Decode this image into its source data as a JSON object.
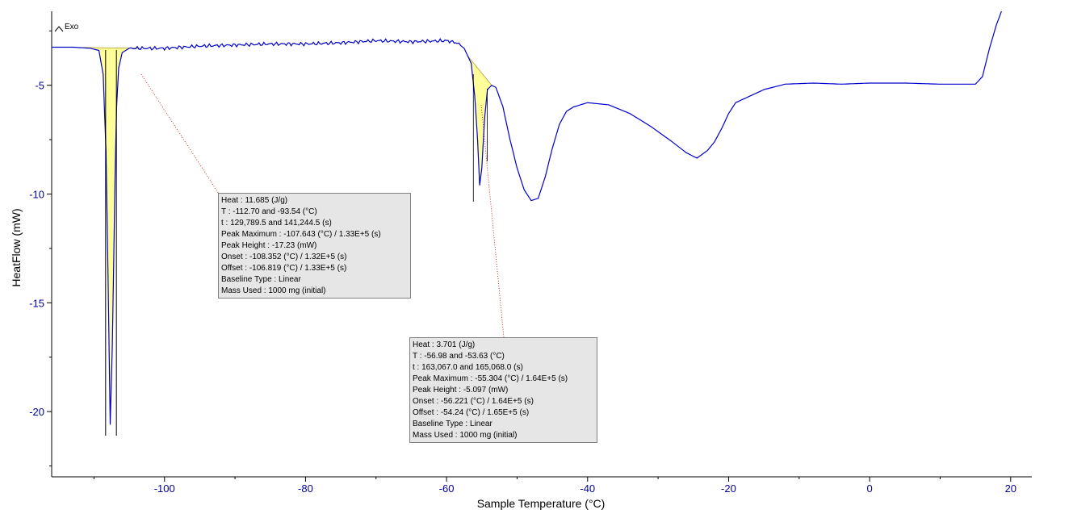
{
  "chart_data": {
    "type": "line",
    "title": "",
    "xlabel": "Sample Temperature (°C)",
    "ylabel": "HeatFlow (mW)",
    "xlim": [
      -116,
      23
    ],
    "ylim": [
      -23,
      -1.6
    ],
    "xticks": [
      -100,
      -80,
      -60,
      -40,
      -20,
      0,
      20
    ],
    "yticks": [
      -5,
      -10,
      -15,
      -20
    ],
    "exo_label": "Exo",
    "grid": false,
    "series": [
      {
        "color": "#0000cc",
        "points": [
          [
            -116,
            -3.25
          ],
          [
            -113,
            -3.25
          ],
          [
            -110.5,
            -3.3
          ],
          [
            -109.3,
            -3.4
          ],
          [
            -108.7,
            -4.5
          ],
          [
            -108.3,
            -8
          ],
          [
            -108.0,
            -14
          ],
          [
            -107.7,
            -20.6
          ],
          [
            -107.4,
            -17
          ],
          [
            -107.2,
            -13
          ],
          [
            -107.0,
            -9
          ],
          [
            -106.8,
            -6
          ],
          [
            -106.5,
            -4.2
          ],
          [
            -106.0,
            -3.5
          ],
          [
            -105,
            -3.3
          ],
          [
            -100,
            -3.3
          ],
          [
            -95,
            -3.2
          ],
          [
            -90,
            -3.15
          ],
          [
            -85,
            -3.1
          ],
          [
            -80,
            -3.1
          ],
          [
            -75,
            -3.05
          ],
          [
            -70,
            -2.95
          ],
          [
            -65,
            -3.0
          ],
          [
            -60,
            -2.95
          ],
          [
            -58.5,
            -3.05
          ],
          [
            -57.5,
            -3.3
          ],
          [
            -56.5,
            -4.0
          ],
          [
            -56.0,
            -5.5
          ],
          [
            -55.6,
            -7.5
          ],
          [
            -55.3,
            -9.6
          ],
          [
            -55.0,
            -8.8
          ],
          [
            -54.6,
            -6.5
          ],
          [
            -54.2,
            -5.2
          ],
          [
            -53.6,
            -5.0
          ],
          [
            -53,
            -5.1
          ],
          [
            -52,
            -6.0
          ],
          [
            -51,
            -7.5
          ],
          [
            -50,
            -8.8
          ],
          [
            -49,
            -9.8
          ],
          [
            -48,
            -10.3
          ],
          [
            -47,
            -10.2
          ],
          [
            -46,
            -9.2
          ],
          [
            -45,
            -7.9
          ],
          [
            -44,
            -6.8
          ],
          [
            -43,
            -6.2
          ],
          [
            -42,
            -6.0
          ],
          [
            -40,
            -5.8
          ],
          [
            -37,
            -5.9
          ],
          [
            -34,
            -6.3
          ],
          [
            -31,
            -6.9
          ],
          [
            -28,
            -7.6
          ],
          [
            -26,
            -8.1
          ],
          [
            -24.5,
            -8.35
          ],
          [
            -23,
            -8.0
          ],
          [
            -22,
            -7.6
          ],
          [
            -21,
            -7.0
          ],
          [
            -20,
            -6.3
          ],
          [
            -19,
            -5.8
          ],
          [
            -17,
            -5.5
          ],
          [
            -15,
            -5.2
          ],
          [
            -12,
            -4.95
          ],
          [
            -8,
            -4.9
          ],
          [
            -4,
            -4.95
          ],
          [
            0,
            -4.9
          ],
          [
            5,
            -4.9
          ],
          [
            10,
            -4.95
          ],
          [
            15,
            -4.95
          ],
          [
            16,
            -4.6
          ],
          [
            17,
            -3.3
          ],
          [
            18,
            -2.2
          ],
          [
            18.7,
            -1.6
          ]
        ]
      }
    ],
    "annotations": [
      {
        "lines": [
          "Heat :  11.685 (J/g)",
          "T :  -112.70 and -93.54 (°C)",
          "t :  129,789.5 and 141,244.5 (s)",
          "Peak Maximum :  -107.643 (°C) / 1.33E+5 (s)",
          "Peak Height :  -17.23 (mW)",
          "Onset :  -108.352 (°C) / 1.32E+5 (s)",
          "Offset :  -106.819 (°C) / 1.33E+5 (s)",
          "Baseline Type :  Linear",
          "Mass Used :  1000 mg (initial)"
        ]
      },
      {
        "lines": [
          "Heat :  3.701 (J/g)",
          "T :  -56.98 and -53.63 (°C)",
          "t :  163,067.0 and 165,068.0 (s)",
          "Peak Maximum :  -55.304 (°C) / 1.64E+5 (s)",
          "Peak Height :  -5.097 (mW)",
          "Onset :  -56.221 (°C) / 1.64E+5 (s)",
          "Offset :  -54.24 (°C) / 1.65E+5 (s)",
          "Baseline Type :  Linear",
          "Mass Used :  1000 mg (initial)"
        ]
      }
    ]
  }
}
